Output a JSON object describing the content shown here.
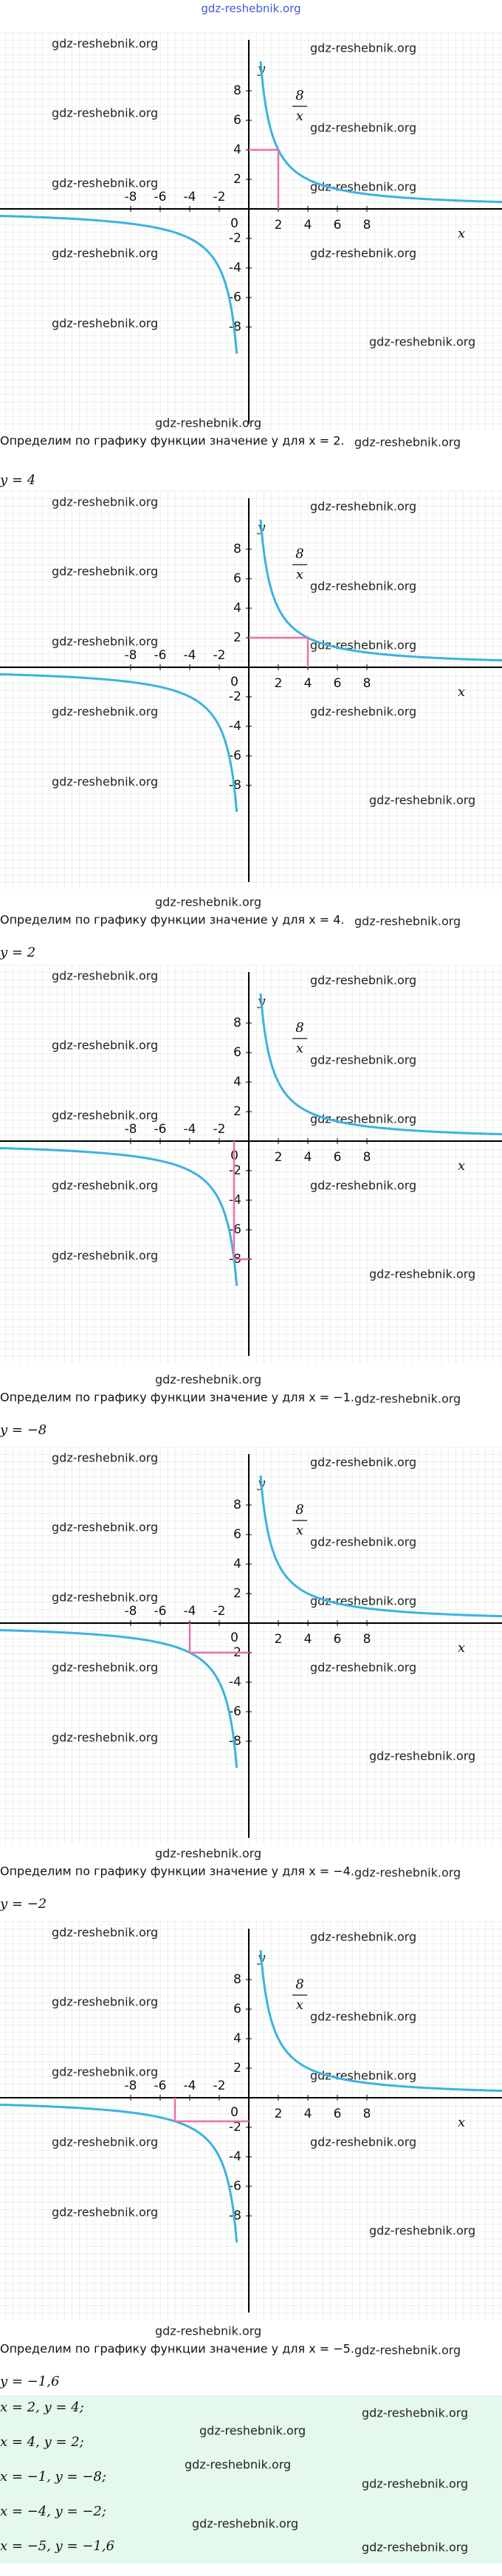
{
  "header": "gdz-reshebnik.org",
  "watermark": "gdz-reshebnik.org",
  "function": {
    "numerator": 8,
    "denominator": "x"
  },
  "axes": {
    "x_label": "x",
    "y_label": "y",
    "origin": "0",
    "xticks": [
      -8,
      -6,
      -4,
      -2,
      2,
      4,
      6,
      8
    ],
    "yticks": [
      8,
      6,
      4,
      2,
      -2,
      -4,
      -6,
      -8
    ]
  },
  "blocks": [
    {
      "x": 2,
      "y": 4,
      "text": "Определим по графику функции значение y для x = 2.",
      "answer": "y = 4"
    },
    {
      "x": 4,
      "y": 2,
      "text": "Определим по графику функции значение y для x = 4.",
      "answer": "y = 2"
    },
    {
      "x": -1,
      "y": -8,
      "text": "Определим по графику функции значение y для x = −1.",
      "answer": "y = −8"
    },
    {
      "x": -4,
      "y": -2,
      "text": "Определим по графику функции значение y для x = −4.",
      "answer": "y = −2"
    },
    {
      "x": -5,
      "y": -1.6,
      "text": "Определим по графику функции значение y для x = −5.",
      "answer": "y = −1,6"
    }
  ],
  "summary": [
    "x = 2, y = 4;",
    "x = 4, y = 2;",
    "x = −1, y = −8;",
    "x = −4, y = −2;",
    "x = −5, y = −1,6"
  ]
}
